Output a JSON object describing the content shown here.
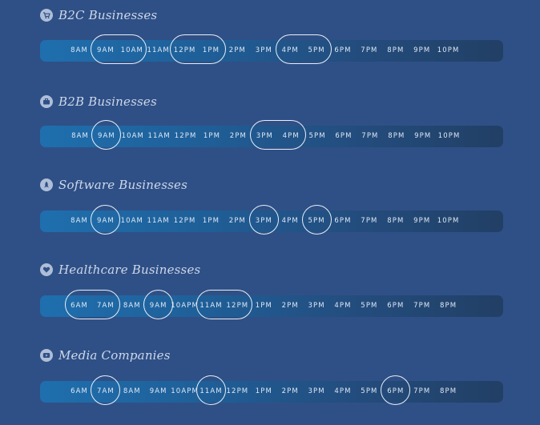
{
  "sections": [
    {
      "title": "B2C Businesses",
      "icon": "cart-icon",
      "times": [
        "8AM",
        "9AM",
        "10AM",
        "11AM",
        "12PM",
        "1PM",
        "2PM",
        "3PM",
        "4PM",
        "5PM",
        "6PM",
        "7PM",
        "8PM",
        "9PM",
        "10PM"
      ],
      "highlights": [
        [
          1,
          2
        ],
        [
          4,
          5
        ],
        [
          8,
          9
        ]
      ]
    },
    {
      "title": "B2B Businesses",
      "icon": "briefcase-icon",
      "times": [
        "8AM",
        "9AM",
        "10AM",
        "11AM",
        "12PM",
        "1PM",
        "2PM",
        "3PM",
        "4PM",
        "5PM",
        "6PM",
        "7PM",
        "8PM",
        "9PM",
        "10PM"
      ],
      "highlights": [
        [
          1,
          1
        ],
        [
          7,
          8
        ]
      ]
    },
    {
      "title": "Software Businesses",
      "icon": "rocket-icon",
      "times": [
        "8AM",
        "9AM",
        "10AM",
        "11AM",
        "12PM",
        "1PM",
        "2PM",
        "3PM",
        "4PM",
        "5PM",
        "6PM",
        "7PM",
        "8PM",
        "9PM",
        "10PM"
      ],
      "highlights": [
        [
          1,
          1
        ],
        [
          7,
          7
        ],
        [
          9,
          9
        ]
      ]
    },
    {
      "title": "Healthcare Businesses",
      "icon": "heart-icon",
      "times": [
        "6AM",
        "7AM",
        "8AM",
        "9AM",
        "10APM",
        "11AM",
        "12PM",
        "1PM",
        "2PM",
        "3PM",
        "4PM",
        "5PM",
        "6PM",
        "7PM",
        "8PM"
      ],
      "highlights": [
        [
          0,
          1
        ],
        [
          3,
          3
        ],
        [
          5,
          6
        ]
      ]
    },
    {
      "title": "Media Companies",
      "icon": "play-icon",
      "times": [
        "6AM",
        "7AM",
        "8AM",
        "9AM",
        "10APM",
        "11AM",
        "12PM",
        "1PM",
        "2PM",
        "3PM",
        "4PM",
        "5PM",
        "6PM",
        "7PM",
        "8PM"
      ],
      "highlights": [
        [
          1,
          1
        ],
        [
          5,
          5
        ],
        [
          12,
          12
        ]
      ]
    }
  ]
}
